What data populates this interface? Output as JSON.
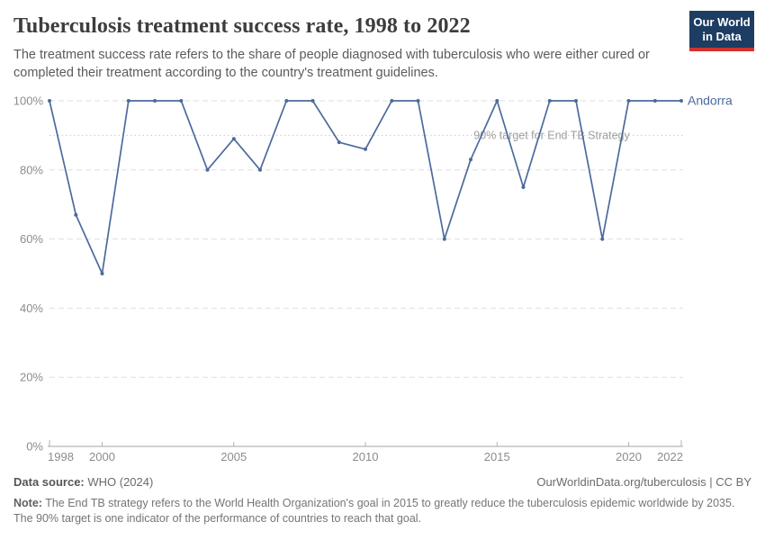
{
  "header": {
    "title": "Tuberculosis treatment success rate, 1998 to 2022",
    "subtitle": "The treatment success rate refers to the share of people diagnosed with tuberculosis who were either cured or completed their treatment according to the country's treatment guidelines.",
    "logo": {
      "line1": "Our World",
      "line2": "in Data"
    }
  },
  "chart_data": {
    "type": "line",
    "title": "Tuberculosis treatment success rate, 1998 to 2022",
    "x": [
      1998,
      1999,
      2000,
      2001,
      2002,
      2003,
      2004,
      2005,
      2006,
      2007,
      2008,
      2009,
      2010,
      2011,
      2012,
      2013,
      2014,
      2015,
      2016,
      2017,
      2018,
      2019,
      2020,
      2021,
      2022
    ],
    "series": [
      {
        "name": "Andorra",
        "values": [
          100,
          67,
          50,
          100,
          100,
          100,
          80,
          89,
          80,
          100,
          100,
          88,
          86,
          100,
          100,
          60,
          83,
          100,
          75,
          100,
          100,
          60,
          100,
          100,
          100
        ]
      }
    ],
    "xlabel": "",
    "ylabel": "",
    "ylim": [
      0,
      100
    ],
    "xlim": [
      1998,
      2022
    ],
    "yticks": [
      0,
      20,
      40,
      60,
      80,
      100
    ],
    "ytick_labels": [
      "0%",
      "20%",
      "40%",
      "60%",
      "80%",
      "100%"
    ],
    "xticks": [
      1998,
      2000,
      2005,
      2010,
      2015,
      2020,
      2022
    ],
    "xtick_labels": [
      "1998",
      "2000",
      "2005",
      "2010",
      "2015",
      "2020",
      "2022"
    ],
    "grid": "horizontal-dashed",
    "legend_position": "end-of-line",
    "entity_label": "Andorra",
    "annotation": {
      "text": "90% target for End TB Strategy",
      "value": 90
    }
  },
  "colors": {
    "series_line": "#4c6a9c",
    "grid_line": "#dedede",
    "axis_line": "#a6a6a6",
    "tick_mark": "#b3b3b3",
    "tick_label": "#8c8c8c",
    "target_line": "#cacaca",
    "annotation_text": "#9e9e9e",
    "logo_bg": "#1d3d63",
    "logo_stripe": "#d0342c"
  },
  "footer": {
    "source_label": "Data source:",
    "source_value": " WHO (2024)",
    "link": "OurWorldinData.org/tuberculosis | CC BY",
    "note_label": "Note:",
    "note_text": " The End TB strategy refers to the World Health Organization's goal in 2015 to greatly reduce the tuberculosis epidemic worldwide by 2035. The 90% target is one indicator of the performance of countries to reach that goal."
  }
}
